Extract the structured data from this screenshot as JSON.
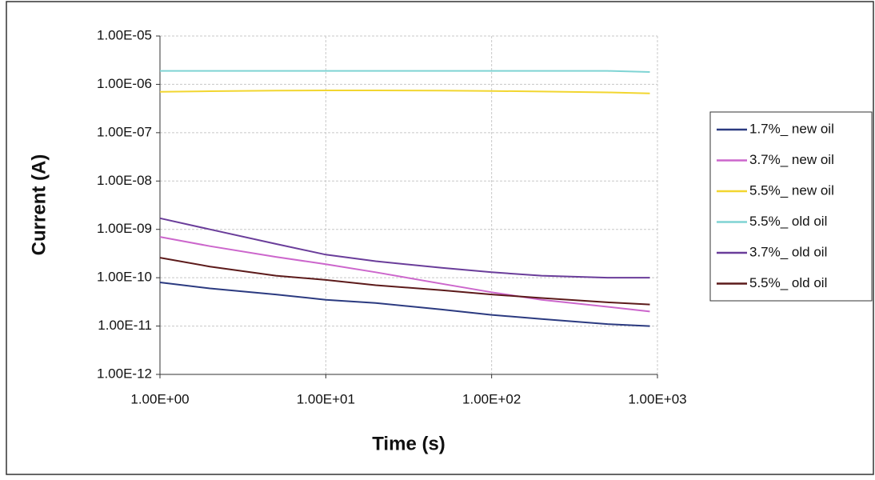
{
  "chart_data": {
    "type": "line",
    "x_label": "Time (s)",
    "y_label": "Current (A)",
    "x": [
      1,
      2,
      5,
      10,
      20,
      50,
      100,
      200,
      500,
      900
    ],
    "series": [
      {
        "name": "1.7%_ new oil",
        "color": "#2b3a80",
        "values": [
          8e-11,
          6e-11,
          4.5e-11,
          3.5e-11,
          3e-11,
          2.2e-11,
          1.7e-11,
          1.4e-11,
          1.1e-11,
          1e-11
        ]
      },
      {
        "name": "3.7%_ new oil",
        "color": "#cc66cc",
        "values": [
          7e-10,
          4.5e-10,
          2.7e-10,
          1.9e-10,
          1.3e-10,
          7.5e-11,
          5e-11,
          3.5e-11,
          2.5e-11,
          2e-11
        ]
      },
      {
        "name": "5.5%_ new oil",
        "color": "#f2d630",
        "values": [
          7e-07,
          7.2e-07,
          7.4e-07,
          7.5e-07,
          7.5e-07,
          7.4e-07,
          7.3e-07,
          7.1e-07,
          6.8e-07,
          6.5e-07
        ]
      },
      {
        "name": "5.5%_ old oil",
        "color": "#7fd4d4",
        "values": [
          1.9e-06,
          1.9e-06,
          1.9e-06,
          1.9e-06,
          1.9e-06,
          1.9e-06,
          1.9e-06,
          1.9e-06,
          1.9e-06,
          1.8e-06
        ]
      },
      {
        "name": "3.7%_ old oil",
        "color": "#6a3d9a",
        "values": [
          1.7e-09,
          1e-09,
          5e-10,
          3e-10,
          2.2e-10,
          1.6e-10,
          1.3e-10,
          1.1e-10,
          1e-10,
          1e-10
        ]
      },
      {
        "name": "5.5%_ old oil",
        "color": "#5c1a1a",
        "values": [
          2.6e-10,
          1.7e-10,
          1.1e-10,
          9e-11,
          7e-11,
          5.5e-11,
          4.5e-11,
          3.8e-11,
          3.1e-11,
          2.8e-11
        ]
      }
    ],
    "xlim": [
      1,
      1000
    ],
    "x_log": true,
    "xticks": [
      {
        "value": 1,
        "label": "1.00E+00"
      },
      {
        "value": 10,
        "label": "1.00E+01"
      },
      {
        "value": 100,
        "label": "1.00E+02"
      },
      {
        "value": 1000,
        "label": "1.00E+03"
      }
    ],
    "ylim": [
      1e-12,
      1e-05
    ],
    "y_log": true,
    "yticks": [
      {
        "value": 1e-12,
        "label": "1.00E-12"
      },
      {
        "value": 1e-11,
        "label": "1.00E-11"
      },
      {
        "value": 1e-10,
        "label": "1.00E-10"
      },
      {
        "value": 1e-09,
        "label": "1.00E-09"
      },
      {
        "value": 1e-08,
        "label": "1.00E-08"
      },
      {
        "value": 1e-07,
        "label": "1.00E-07"
      },
      {
        "value": 1e-06,
        "label": "1.00E-06"
      },
      {
        "value": 1e-05,
        "label": "1.00E-05"
      }
    ],
    "grid": true,
    "legend": "right"
  }
}
